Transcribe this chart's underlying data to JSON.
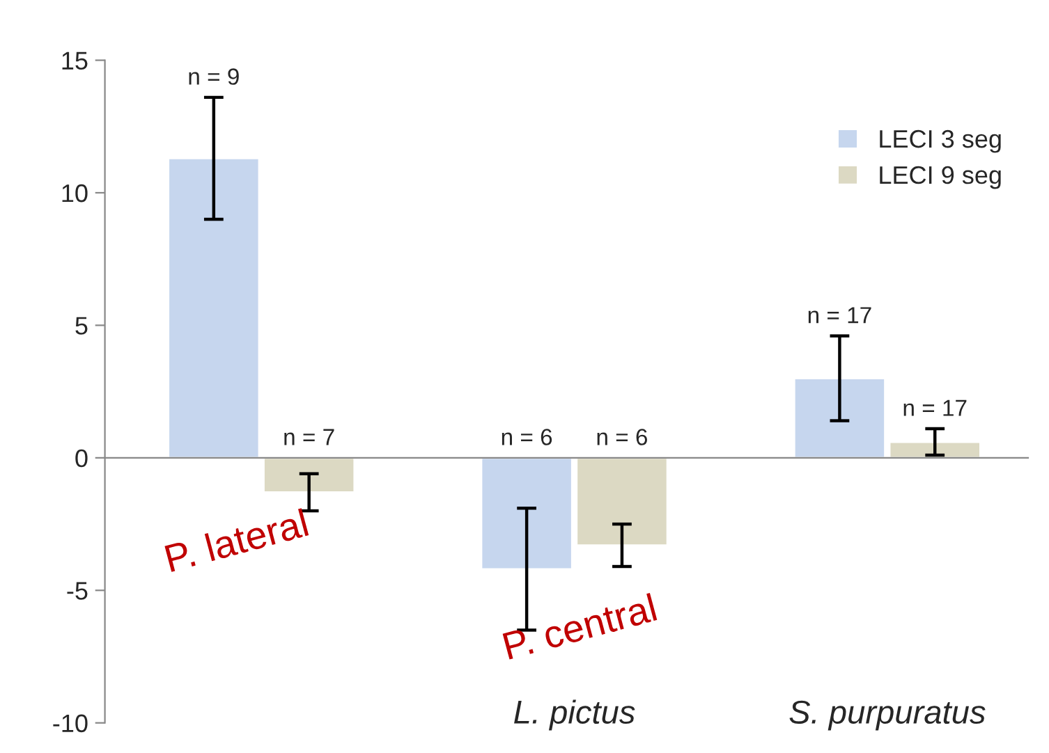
{
  "chart_data": {
    "type": "bar",
    "categories": [
      null,
      "L. pictus",
      "S. purpuratus"
    ],
    "series": [
      {
        "name": "LECI 3 seg",
        "color": "#c6d6ee",
        "values": [
          11.3,
          -4.2,
          3.0
        ],
        "errors": [
          2.3,
          2.3,
          1.6
        ]
      },
      {
        "name": "LECI 9 seg",
        "color": "#dcd9c3",
        "values": [
          -1.3,
          -3.3,
          0.6
        ],
        "errors": [
          0.7,
          0.8,
          0.5
        ]
      }
    ],
    "ylim": [
      -10,
      15
    ],
    "yticks": [
      -10,
      -5,
      0,
      5,
      10,
      15
    ],
    "legend": "top right",
    "annotations": [
      "n = 9",
      "n = 7",
      "n = 6",
      "n = 6",
      "n = 17",
      "n = 17",
      "P. lateral",
      "P. central"
    ]
  }
}
